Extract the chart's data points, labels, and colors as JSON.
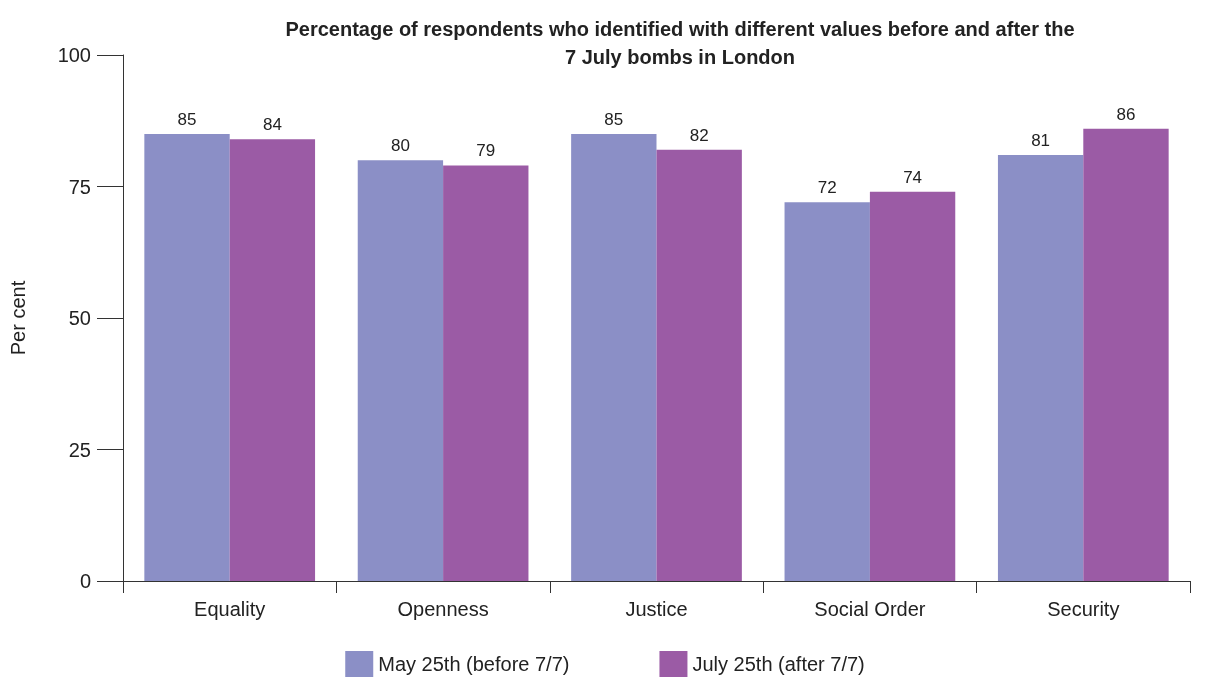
{
  "chart_data": {
    "type": "bar",
    "title": "Percentage of respondents who identified with different values before and after the\n7 July bombs in London",
    "ylabel": "Per cent",
    "categories": [
      "Equality",
      "Openness",
      "Justice",
      "Social Order",
      "Security"
    ],
    "series": [
      {
        "name": "May 25th (before 7/7)",
        "color": "#8b8fc6",
        "values": [
          85,
          80,
          85,
          72,
          81
        ]
      },
      {
        "name": "July 25th (after 7/7)",
        "color": "#9b5ba5",
        "values": [
          84,
          79,
          82,
          74,
          86
        ]
      }
    ],
    "ylim": [
      0,
      100
    ],
    "yticks": [
      0,
      25,
      50,
      75,
      100
    ],
    "data_labels": true,
    "grid": false,
    "legend": "bottom"
  }
}
